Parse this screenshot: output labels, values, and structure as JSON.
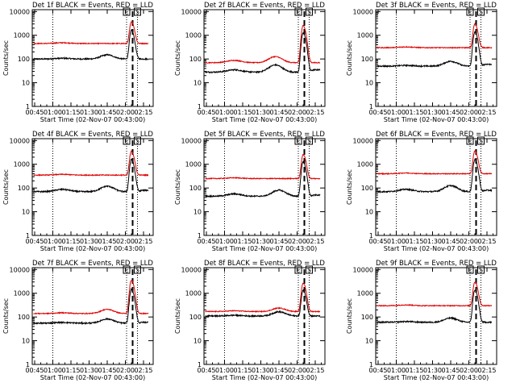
{
  "chart_data": [
    {
      "type": "line",
      "title": "Det 1f BLACK = Events, RED = LLD",
      "xlabel": "Start Time (02-Nov-07 00:43:00)",
      "ylabel": "Counts/sec",
      "yscale": "log",
      "ylim": [
        1,
        12000
      ],
      "xlim": [
        "00:43",
        "02:23"
      ],
      "x_ticks": [
        "00:45",
        "01:00",
        "01:15",
        "01:30",
        "01:45",
        "02:00",
        "02:15"
      ],
      "y_ticks": [
        "1",
        "10",
        "100",
        "1000",
        "10000"
      ],
      "markers": [
        "E",
        "S"
      ],
      "vlines_dotted": [
        "01:00",
        "02:01",
        "02:10"
      ],
      "vlines_dashed": [
        "02:06"
      ],
      "series": [
        {
          "name": "BLACK = Events",
          "color": "#000000",
          "base": 100,
          "bump_time": "01:45",
          "bump_height": 1.5,
          "peak": 1500,
          "post_level": 100
        },
        {
          "name": "RED = LLD",
          "color": "#e00000",
          "base": 450,
          "bump_time": "01:45",
          "bump_height": 1.0,
          "peak": 3300,
          "post_level": 450
        }
      ]
    },
    {
      "type": "line",
      "title": "Det 2f BLACK = Events, RED = LLD",
      "xlabel": "Start Time (02-Nov-07 00:43:00)",
      "ylabel": "Counts/sec",
      "yscale": "log",
      "ylim": [
        1,
        12000
      ],
      "xlim": [
        "00:43",
        "02:23"
      ],
      "x_ticks": [
        "00:45",
        "01:00",
        "01:15",
        "01:30",
        "01:45",
        "02:00",
        "02:15"
      ],
      "y_ticks": [
        "1",
        "10",
        "100",
        "1000",
        "10000"
      ],
      "markers": [
        "E",
        "S"
      ],
      "vlines_dotted": [
        "01:00",
        "02:01",
        "02:10"
      ],
      "vlines_dashed": [
        "02:06"
      ],
      "series": [
        {
          "name": "BLACK = Events",
          "color": "#000000",
          "base": 28,
          "bump_time": "01:42",
          "bump_height": 2.0,
          "peak": 1200,
          "post_level": 35
        },
        {
          "name": "RED = LLD",
          "color": "#e00000",
          "base": 70,
          "bump_time": "01:42",
          "bump_height": 1.8,
          "peak": 2500,
          "post_level": 70
        }
      ]
    },
    {
      "type": "line",
      "title": "Det 3f BLACK = Events, RED = LLD",
      "xlabel": "Start Time (02-Nov-07 00:43:00)",
      "ylabel": "Counts/sec",
      "yscale": "log",
      "ylim": [
        1,
        12000
      ],
      "xlim": [
        "00:43",
        "02:23"
      ],
      "x_ticks": [
        "00:45",
        "01:00",
        "01:15",
        "01:30",
        "01:45",
        "02:00",
        "02:15"
      ],
      "y_ticks": [
        "1",
        "10",
        "100",
        "1000",
        "10000"
      ],
      "markers": [
        "E",
        "S"
      ],
      "vlines_dotted": [
        "01:00",
        "02:01",
        "02:10"
      ],
      "vlines_dashed": [
        "02:06"
      ],
      "series": [
        {
          "name": "BLACK = Events",
          "color": "#000000",
          "base": 50,
          "bump_time": "01:45",
          "bump_height": 1.6,
          "peak": 1300,
          "post_level": 60
        },
        {
          "name": "RED = LLD",
          "color": "#e00000",
          "base": 300,
          "bump_time": "01:45",
          "bump_height": 1.0,
          "peak": 2700,
          "post_level": 290
        }
      ]
    },
    {
      "type": "line",
      "title": "Det 4f BLACK = Events, RED = LLD",
      "xlabel": "Start Time (02-Nov-07 00:43:00)",
      "ylabel": "Counts/sec",
      "yscale": "log",
      "ylim": [
        1,
        12000
      ],
      "xlim": [
        "00:43",
        "02:23"
      ],
      "x_ticks": [
        "00:45",
        "01:00",
        "01:15",
        "01:30",
        "01:45",
        "02:00",
        "02:15"
      ],
      "y_ticks": [
        "1",
        "10",
        "100",
        "1000",
        "10000"
      ],
      "markers": [
        "E",
        "S"
      ],
      "vlines_dotted": [
        "01:00",
        "02:01",
        "02:10"
      ],
      "vlines_dashed": [
        "02:06"
      ],
      "series": [
        {
          "name": "BLACK = Events",
          "color": "#000000",
          "base": 70,
          "bump_time": "01:45",
          "bump_height": 1.7,
          "peak": 1500,
          "post_level": 80
        },
        {
          "name": "RED = LLD",
          "color": "#e00000",
          "base": 350,
          "bump_time": "01:45",
          "bump_height": 1.0,
          "peak": 3200,
          "post_level": 350
        }
      ]
    },
    {
      "type": "line",
      "title": "Det 5f BLACK = Events, RED = LLD",
      "xlabel": "Start Time (02-Nov-07 00:43:00)",
      "ylabel": "Counts/sec",
      "yscale": "log",
      "ylim": [
        1,
        12000
      ],
      "xlim": [
        "00:43",
        "02:23"
      ],
      "x_ticks": [
        "00:45",
        "01:00",
        "01:15",
        "01:30",
        "01:45",
        "02:00",
        "02:15"
      ],
      "y_ticks": [
        "1",
        "10",
        "100",
        "1000",
        "10000"
      ],
      "markers": [
        "E",
        "S"
      ],
      "vlines_dotted": [
        "01:00",
        "02:01",
        "02:10"
      ],
      "vlines_dashed": [
        "02:06"
      ],
      "series": [
        {
          "name": "BLACK = Events",
          "color": "#000000",
          "base": 45,
          "bump_time": "01:45",
          "bump_height": 1.8,
          "peak": 1200,
          "post_level": 50
        },
        {
          "name": "RED = LLD",
          "color": "#e00000",
          "base": 250,
          "bump_time": "01:45",
          "bump_height": 1.0,
          "peak": 2300,
          "post_level": 250
        }
      ]
    },
    {
      "type": "line",
      "title": "Det 6f BLACK = Events, RED = LLD",
      "xlabel": "Start Time (02-Nov-07 00:43:00)",
      "ylabel": "Counts/sec",
      "yscale": "log",
      "ylim": [
        1,
        12000
      ],
      "xlim": [
        "00:43",
        "02:23"
      ],
      "x_ticks": [
        "00:45",
        "01:00",
        "01:15",
        "01:30",
        "01:45",
        "02:00",
        "02:15"
      ],
      "y_ticks": [
        "1",
        "10",
        "100",
        "1000",
        "10000"
      ],
      "markers": [
        "E",
        "S"
      ],
      "vlines_dotted": [
        "01:00",
        "02:01",
        "02:10"
      ],
      "vlines_dashed": [
        "02:06"
      ],
      "series": [
        {
          "name": "BLACK = Events",
          "color": "#000000",
          "base": 70,
          "bump_time": "01:45",
          "bump_height": 1.8,
          "peak": 1500,
          "post_level": 80
        },
        {
          "name": "RED = LLD",
          "color": "#e00000",
          "base": 400,
          "bump_time": "01:45",
          "bump_height": 1.0,
          "peak": 3200,
          "post_level": 400
        }
      ]
    },
    {
      "type": "line",
      "title": "Det 7f BLACK = Events, RED = LLD",
      "xlabel": "Start Time (02-Nov-07 00:43:00)",
      "ylabel": "Counts/sec",
      "yscale": "log",
      "ylim": [
        1,
        12000
      ],
      "xlim": [
        "00:43",
        "02:23"
      ],
      "x_ticks": [
        "00:45",
        "01:00",
        "01:15",
        "01:30",
        "01:45",
        "02:00",
        "02:15"
      ],
      "y_ticks": [
        "1",
        "10",
        "100",
        "1000",
        "10000"
      ],
      "markers": [
        "E",
        "S"
      ],
      "vlines_dotted": [
        "01:00",
        "02:01",
        "02:10"
      ],
      "vlines_dashed": [
        "02:06"
      ],
      "series": [
        {
          "name": "BLACK = Events",
          "color": "#000000",
          "base": 55,
          "bump_time": "01:45",
          "bump_height": 1.5,
          "peak": 1400,
          "post_level": 60
        },
        {
          "name": "RED = LLD",
          "color": "#e00000",
          "base": 140,
          "bump_time": "01:45",
          "bump_height": 1.5,
          "peak": 3400,
          "post_level": 140
        }
      ]
    },
    {
      "type": "line",
      "title": "Det 8f BLACK = Events, RED = LLD",
      "xlabel": "Start Time (02-Nov-07 00:43:00)",
      "ylabel": "Counts/sec",
      "yscale": "log",
      "ylim": [
        1,
        12000
      ],
      "xlim": [
        "00:43",
        "02:23"
      ],
      "x_ticks": [
        "00:45",
        "01:00",
        "01:15",
        "01:30",
        "01:45",
        "02:00",
        "02:15"
      ],
      "y_ticks": [
        "1",
        "10",
        "100",
        "1000",
        "10000"
      ],
      "markers": [
        "E",
        "S"
      ],
      "vlines_dotted": [
        "01:00",
        "02:01",
        "02:10"
      ],
      "vlines_dashed": [
        "02:06"
      ],
      "series": [
        {
          "name": "BLACK = Events",
          "color": "#000000",
          "base": 110,
          "bump_time": "01:45",
          "bump_height": 1.5,
          "peak": 1200,
          "post_level": 110
        },
        {
          "name": "RED = LLD",
          "color": "#e00000",
          "base": 170,
          "bump_time": "01:45",
          "bump_height": 1.4,
          "peak": 2500,
          "post_level": 170
        }
      ]
    },
    {
      "type": "line",
      "title": "Det 9f BLACK = Events, RED = LLD",
      "xlabel": "Start Time (02-Nov-07 00:43:00)",
      "ylabel": "Counts/sec",
      "yscale": "log",
      "ylim": [
        1,
        12000
      ],
      "xlim": [
        "00:43",
        "02:23"
      ],
      "x_ticks": [
        "00:45",
        "01:00",
        "01:15",
        "01:30",
        "01:45",
        "02:00",
        "02:15"
      ],
      "y_ticks": [
        "1",
        "10",
        "100",
        "1000",
        "10000"
      ],
      "markers": [
        "E",
        "S"
      ],
      "vlines_dotted": [
        "01:00",
        "02:01",
        "02:10"
      ],
      "vlines_dashed": [
        "02:06"
      ],
      "series": [
        {
          "name": "BLACK = Events",
          "color": "#000000",
          "base": 60,
          "bump_time": "01:45",
          "bump_height": 1.5,
          "peak": 1300,
          "post_level": 60
        },
        {
          "name": "RED = LLD",
          "color": "#e00000",
          "base": 300,
          "bump_time": "01:45",
          "bump_height": 1.0,
          "peak": 2700,
          "post_level": 300
        }
      ]
    }
  ]
}
